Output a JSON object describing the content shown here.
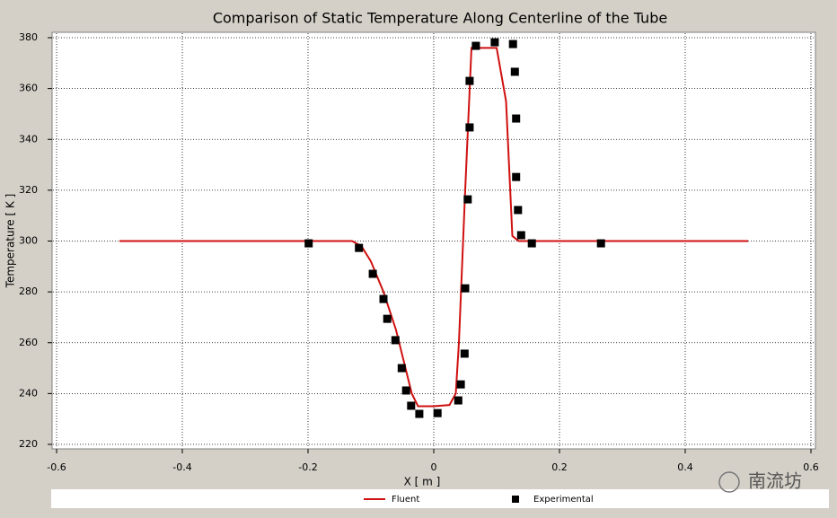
{
  "chart_data": {
    "type": "line",
    "title": "Comparison of Static Temperature Along Centerline of the Tube",
    "x_label": "X [ m ]",
    "y_label": "Temperature [ K ]",
    "xlim": [
      -0.6,
      0.6
    ],
    "ylim": [
      220,
      380
    ],
    "xticks": [
      -0.6,
      -0.4,
      -0.2,
      0,
      0.2,
      0.4,
      0.6
    ],
    "yticks": [
      220,
      240,
      260,
      280,
      300,
      320,
      340,
      360,
      380
    ],
    "grid": true,
    "legend": "bottom",
    "watermark": "南流坊",
    "series": [
      {
        "name": "Fluent",
        "color": "#d01010",
        "mode": "line",
        "x": [
          -0.5,
          -0.13,
          -0.115,
          -0.1,
          -0.08,
          -0.06,
          -0.045,
          -0.035,
          -0.025,
          0.0,
          0.025,
          0.035,
          0.04,
          0.05,
          0.06,
          0.1,
          0.115,
          0.125,
          0.135,
          0.5
        ],
        "values": [
          300,
          300,
          298,
          292,
          280,
          265,
          250,
          240,
          235,
          235,
          235.5,
          240,
          260,
          320,
          376,
          376,
          355,
          302,
          300,
          300
        ]
      },
      {
        "name": "Experimental",
        "color": "#000000",
        "mode": "markers",
        "x": [
          -0.199,
          -0.119,
          -0.097,
          -0.08,
          -0.074,
          -0.061,
          -0.051,
          -0.044,
          -0.036,
          -0.023,
          0.006,
          0.039,
          0.043,
          0.049,
          0.05,
          0.054,
          0.057,
          0.057,
          0.067,
          0.097,
          0.126,
          0.129,
          0.131,
          0.131,
          0.134,
          0.139,
          0.156,
          0.266
        ],
        "values": [
          299.1,
          297.3,
          287.1,
          277.2,
          269.4,
          261,
          250,
          241.2,
          235.2,
          232,
          232.3,
          237.3,
          243.6,
          255.7,
          281.4,
          316.4,
          344.7,
          363,
          376.8,
          378.2,
          377.5,
          366.6,
          348.2,
          325.2,
          312.2,
          302.3,
          299.1,
          299.1
        ]
      }
    ]
  }
}
